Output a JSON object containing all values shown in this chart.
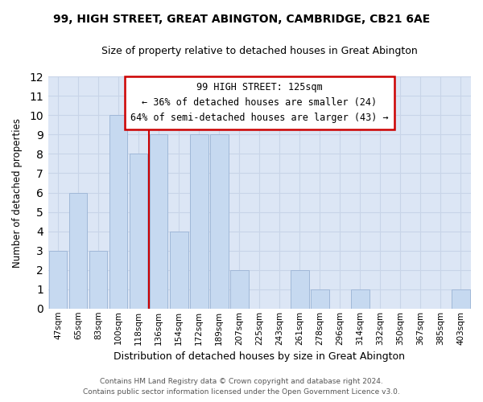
{
  "title": "99, HIGH STREET, GREAT ABINGTON, CAMBRIDGE, CB21 6AE",
  "subtitle": "Size of property relative to detached houses in Great Abington",
  "xlabel": "Distribution of detached houses by size in Great Abington",
  "ylabel": "Number of detached properties",
  "footer_lines": [
    "Contains HM Land Registry data © Crown copyright and database right 2024.",
    "Contains public sector information licensed under the Open Government Licence v3.0."
  ],
  "bin_labels": [
    "47sqm",
    "65sqm",
    "83sqm",
    "100sqm",
    "118sqm",
    "136sqm",
    "154sqm",
    "172sqm",
    "189sqm",
    "207sqm",
    "225sqm",
    "243sqm",
    "261sqm",
    "278sqm",
    "296sqm",
    "314sqm",
    "332sqm",
    "350sqm",
    "367sqm",
    "385sqm",
    "403sqm"
  ],
  "bar_heights": [
    3,
    6,
    3,
    10,
    8,
    9,
    4,
    9,
    9,
    2,
    0,
    0,
    2,
    1,
    0,
    1,
    0,
    0,
    0,
    0,
    1
  ],
  "bar_color": "#c6d9f0",
  "bar_edge_color": "#a0b8d8",
  "highlight_line_color": "#cc0000",
  "annotation_text": "99 HIGH STREET: 125sqm\n← 36% of detached houses are smaller (24)\n64% of semi-detached houses are larger (43) →",
  "annotation_box_color": "white",
  "annotation_box_edge_color": "#cc0000",
  "ylim": [
    0,
    12
  ],
  "yticks": [
    0,
    1,
    2,
    3,
    4,
    5,
    6,
    7,
    8,
    9,
    10,
    11,
    12
  ],
  "grid_color": "#c8d4e8",
  "plot_bg_color": "#dce6f5",
  "fig_bg_color": "#ffffff"
}
